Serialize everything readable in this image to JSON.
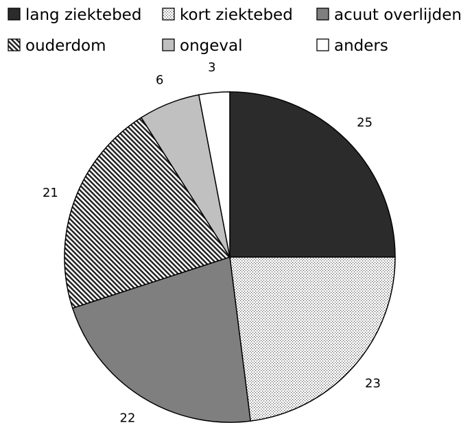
{
  "chart_data": {
    "type": "pie",
    "title": "",
    "categories": [
      "lang ziektebed",
      "kort ziektebed",
      "acuut overlijden",
      "ouderdom",
      "ongeval",
      "anders"
    ],
    "values": [
      25,
      23,
      22,
      21,
      6,
      3
    ],
    "fills": [
      "dark",
      "dotted",
      "medium-gray",
      "hatched",
      "light-gray",
      "white"
    ],
    "colors": [
      "#2b2b2b",
      "#e4e4e4",
      "#7f7f7f",
      "#555555",
      "#c0c0c0",
      "#ffffff"
    ],
    "legend": {
      "position": "top",
      "entries": [
        "lang ziektebed",
        "kort ziektebed",
        "acuut overlijden",
        "ouderdom",
        "ongeval",
        "anders"
      ]
    },
    "data_labels": [
      "25",
      "23",
      "22",
      "21",
      "6",
      "3"
    ],
    "start_angle": "12 o'clock",
    "direction": "clockwise"
  }
}
